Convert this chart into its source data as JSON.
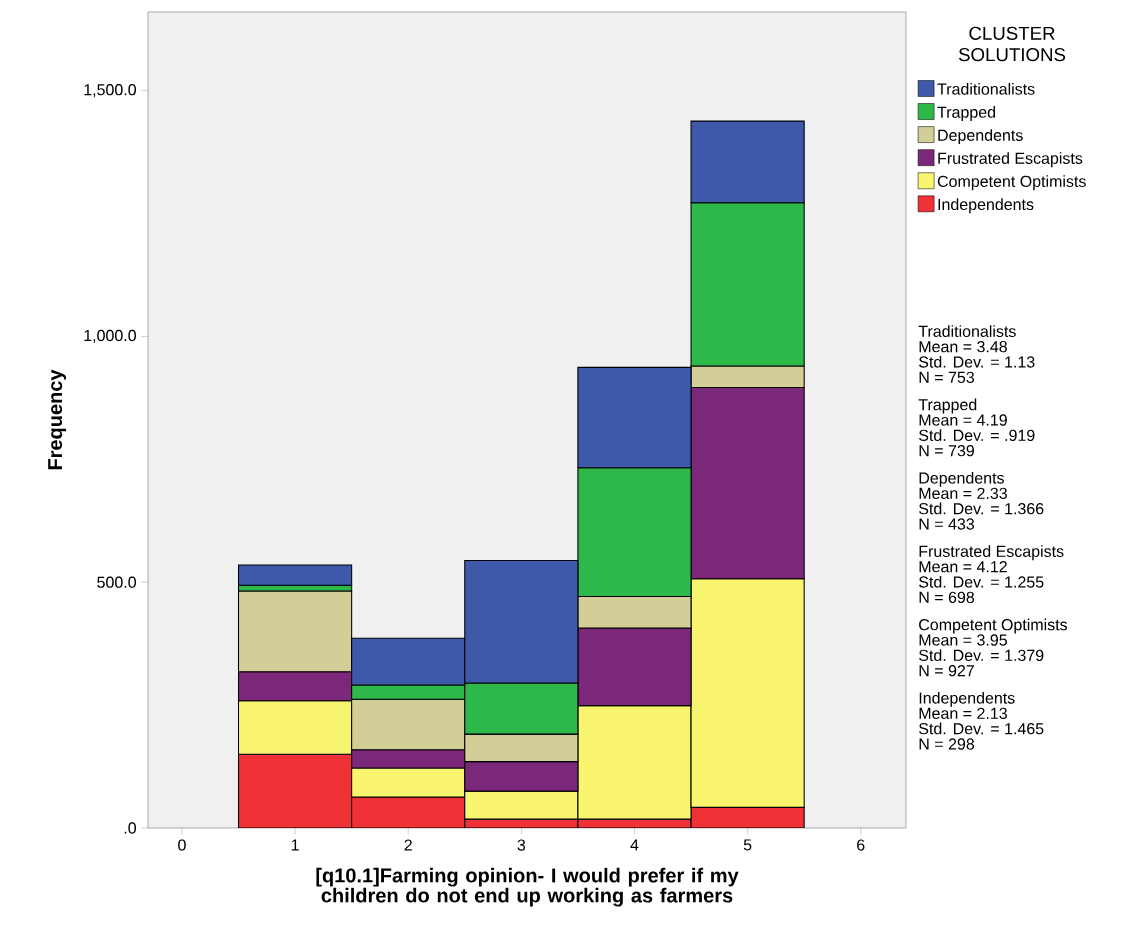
{
  "chart_data": {
    "type": "bar",
    "stacked": true,
    "xlabel": "[q10.1]Farming opinion- I would prefer if my children do not end up working as farmers",
    "ylabel": "Frequency",
    "legend_title": "CLUSTER SOLUTIONS",
    "x": [
      1,
      2,
      3,
      4,
      5
    ],
    "series": [
      {
        "name": "Independents",
        "color": "#f03136",
        "values": [
          150,
          63,
          18,
          18,
          42
        ]
      },
      {
        "name": "Competent Optimists",
        "color": "#faf56f",
        "values": [
          109,
          59,
          57,
          231,
          465
        ]
      },
      {
        "name": "Frustrated Escapists",
        "color": "#7b287b",
        "values": [
          59,
          37,
          60,
          158,
          389
        ]
      },
      {
        "name": "Dependents",
        "color": "#d3ce98",
        "values": [
          164,
          103,
          56,
          64,
          44
        ]
      },
      {
        "name": "Trapped",
        "color": "#2fb84a",
        "values": [
          12,
          29,
          104,
          262,
          332
        ]
      },
      {
        "name": "Traditionalists",
        "color": "#3e59aa",
        "values": [
          41,
          95,
          249,
          204,
          166
        ]
      }
    ],
    "xlim": [
      -0.3,
      6.4
    ],
    "ylim": [
      0,
      1660
    ],
    "xticks": [
      0,
      1,
      2,
      3,
      4,
      5,
      6
    ],
    "yticks": [
      {
        "value": 0,
        "label": ".0"
      },
      {
        "value": 500,
        "label": "500.0"
      },
      {
        "value": 1000,
        "label": "1,000.0"
      },
      {
        "value": 1500,
        "label": "1,500.0"
      }
    ],
    "legend": "right",
    "annotations": [
      "Traditionalists",
      "Mean = 3.48",
      "Std. Dev. = 1.13",
      "N = 753",
      "Trapped",
      "Mean = 4.19",
      "Std. Dev. = .919",
      "N = 739",
      "Dependents",
      "Mean = 2.33",
      "Std. Dev. = 1.366",
      "N = 433",
      "Frustrated Escapists",
      "Mean = 4.12",
      "Std. Dev. = 1.255",
      "N = 698",
      "Competent Optimists",
      "Mean = 3.95",
      "Std. Dev. = 1.379",
      "N = 927",
      "Independents",
      "Mean = 2.13",
      "Std. Dev. = 1.465",
      "N = 298"
    ]
  }
}
